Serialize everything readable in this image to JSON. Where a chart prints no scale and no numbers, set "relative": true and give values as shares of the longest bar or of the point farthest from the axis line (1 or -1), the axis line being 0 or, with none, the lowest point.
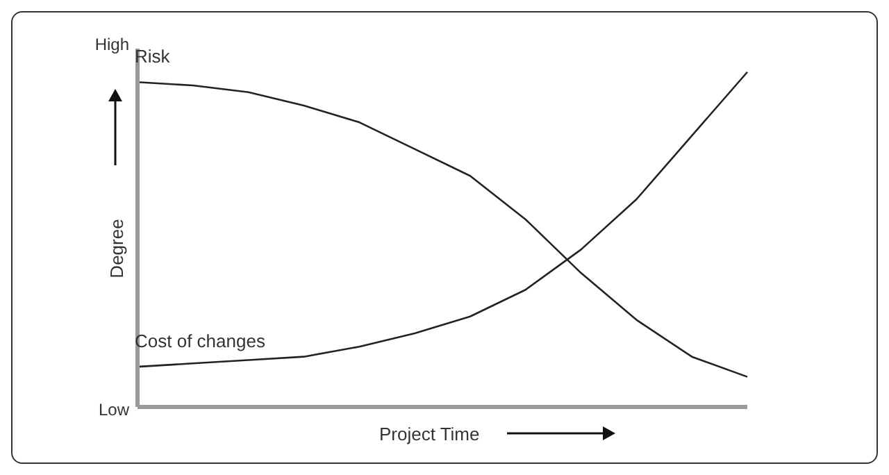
{
  "chart_data": {
    "type": "line",
    "xlabel": "Project Time",
    "ylabel": "Degree",
    "relative": true,
    "annotations": [
      "High",
      "Low"
    ],
    "categories": [
      null,
      null,
      null,
      null,
      null,
      null,
      null,
      null,
      null,
      null,
      null,
      null
    ],
    "series": [
      {
        "name": "Risk",
        "color": "#222222",
        "values": [
          0.97,
          0.96,
          0.94,
          0.9,
          0.85,
          0.77,
          0.69,
          0.56,
          0.4,
          0.26,
          0.15,
          0.09
        ]
      },
      {
        "name": "Cost of changes",
        "color": "#222222",
        "values": [
          0.12,
          0.13,
          0.14,
          0.15,
          0.18,
          0.22,
          0.27,
          0.35,
          0.47,
          0.62,
          0.81,
          1
        ]
      }
    ],
    "grid": false,
    "legend": false
  }
}
